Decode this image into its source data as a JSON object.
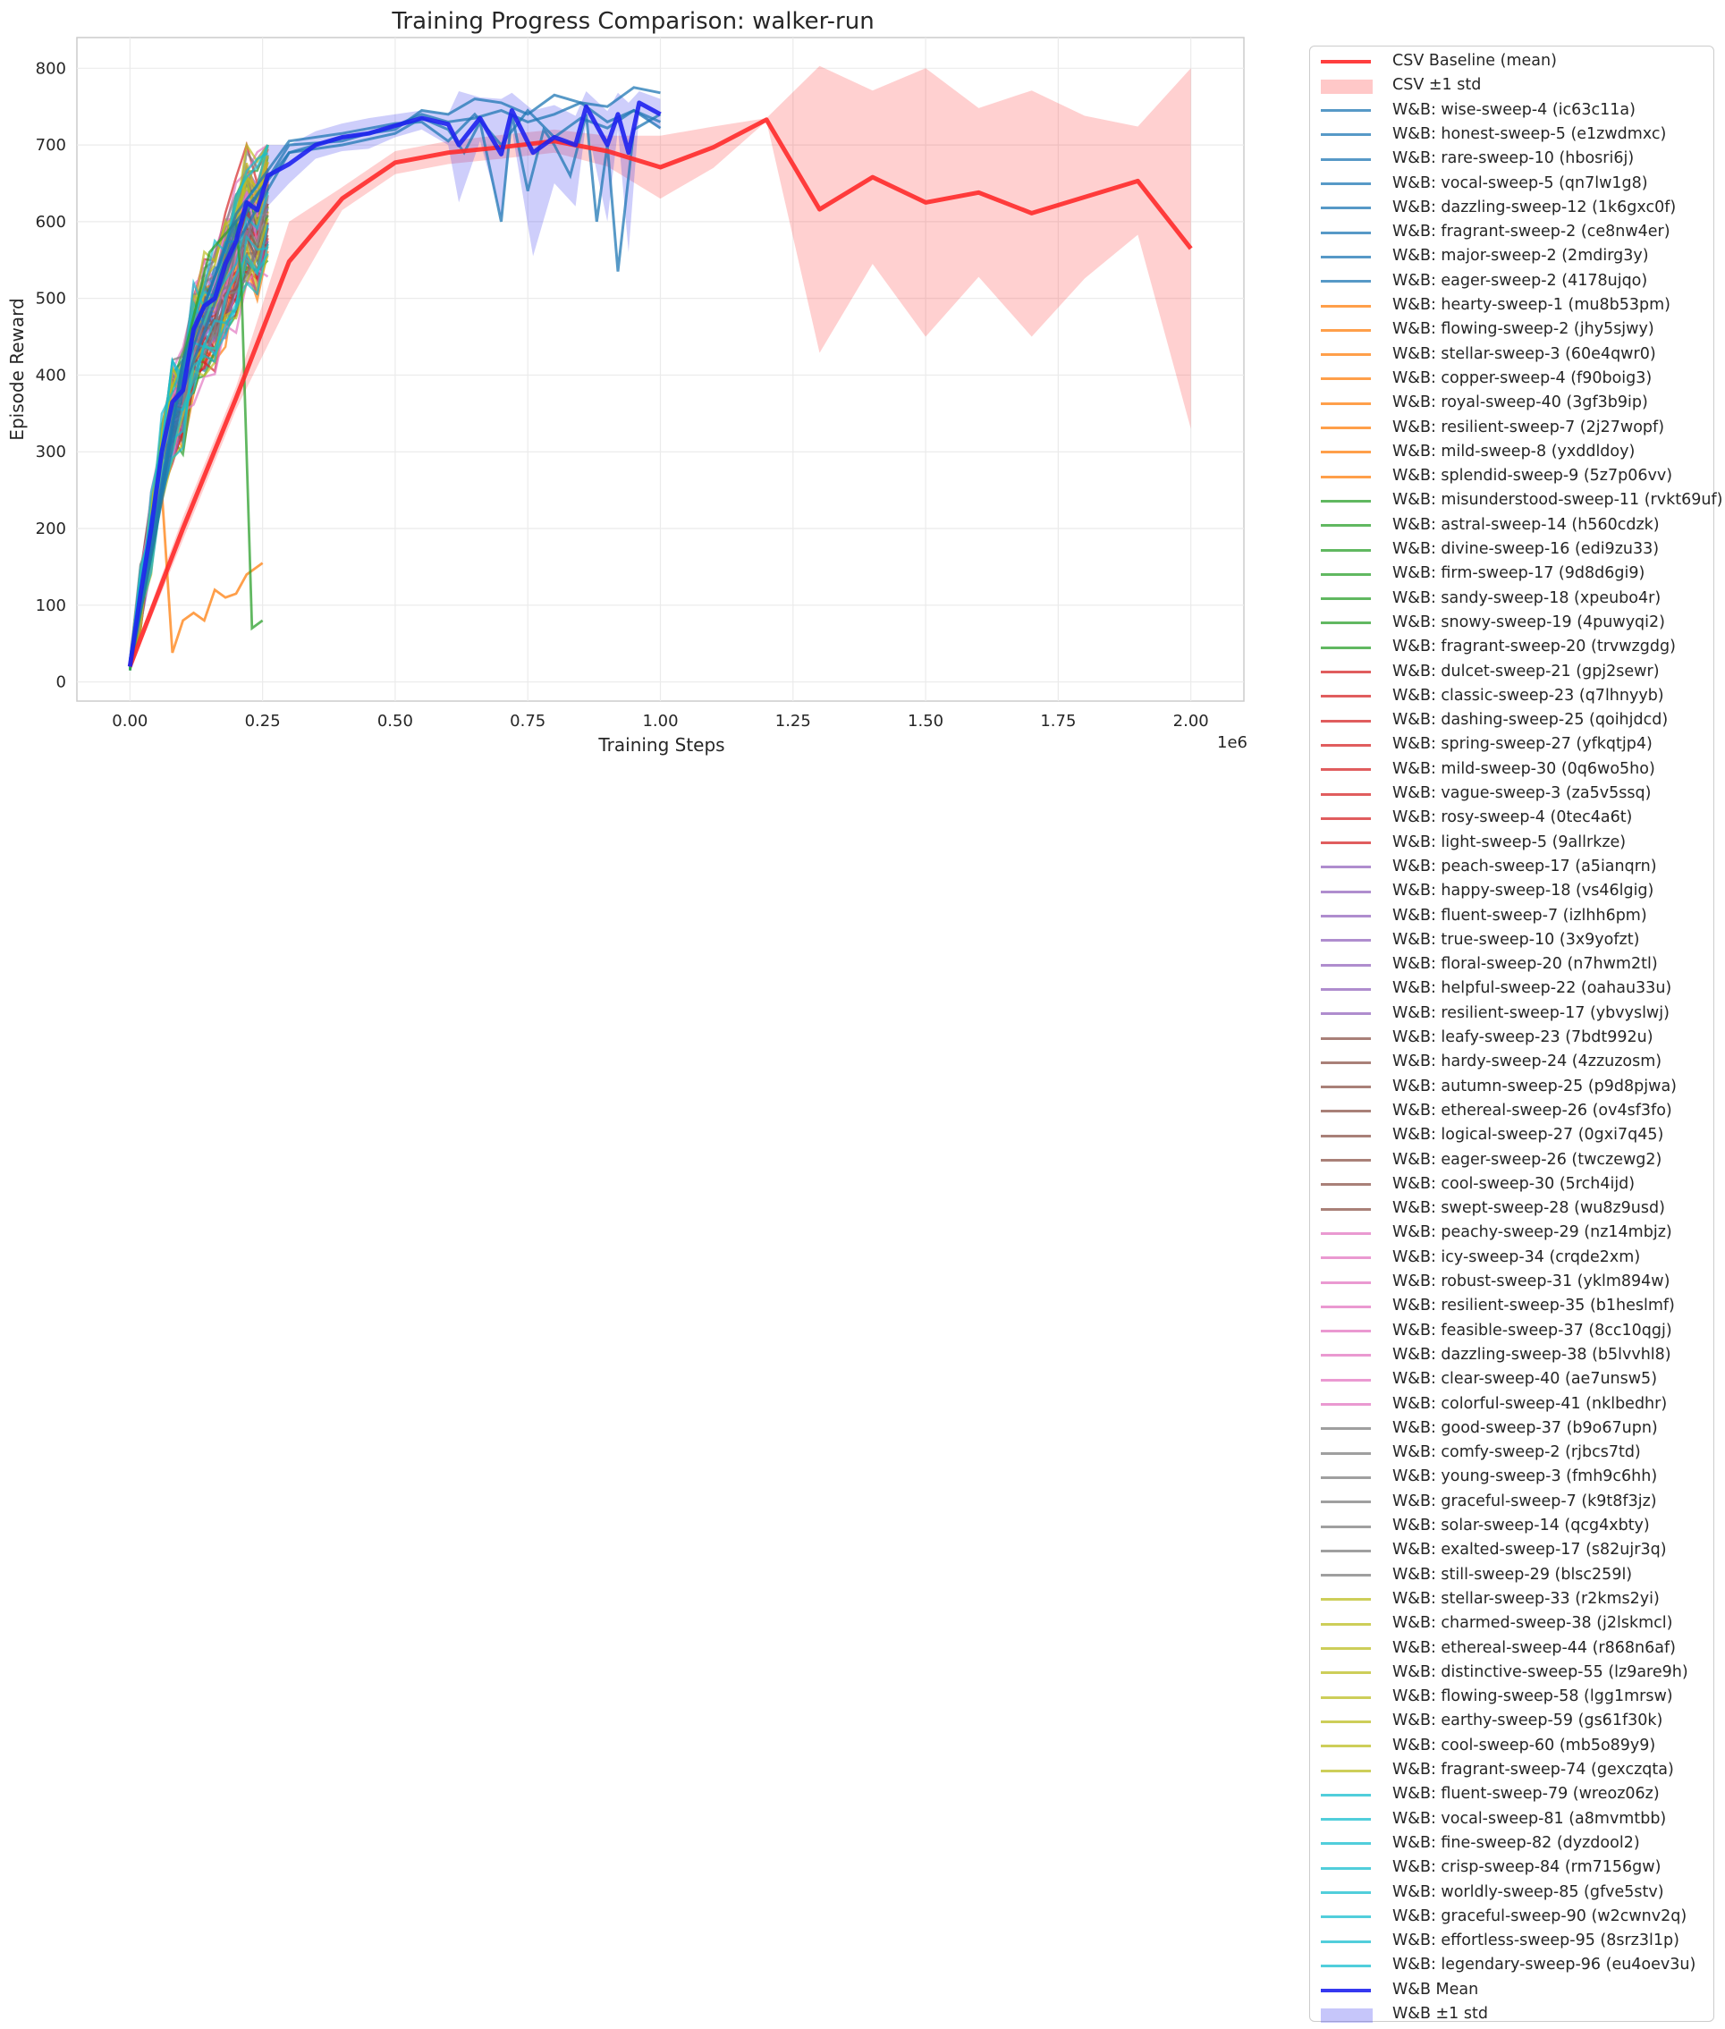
{
  "chart_data": {
    "type": "line",
    "title": "Training Progress Comparison: walker-run",
    "xlabel": "Training Steps",
    "ylabel": "Episode Reward",
    "x_offset_text": "1e6",
    "xlim": [
      -0.1,
      2.1
    ],
    "ylim": [
      -25,
      840
    ],
    "x_scale": 1000000,
    "x_ticks": [
      0.0,
      0.25,
      0.5,
      0.75,
      1.0,
      1.25,
      1.5,
      1.75,
      2.0
    ],
    "x_tick_labels": [
      "0.00",
      "0.25",
      "0.50",
      "0.75",
      "1.00",
      "1.25",
      "1.50",
      "1.75",
      "2.00"
    ],
    "y_ticks": [
      0,
      100,
      200,
      300,
      400,
      500,
      600,
      700,
      800
    ],
    "y_tick_labels": [
      "0",
      "100",
      "200",
      "300",
      "400",
      "500",
      "600",
      "700",
      "800"
    ],
    "grid": true,
    "legend_position": "outside-right",
    "baseline": {
      "name": "CSV Baseline (mean)",
      "band_name": "CSV ±1 std",
      "color": "#ff2a2a",
      "x": [
        0.0,
        0.1,
        0.2,
        0.3,
        0.4,
        0.5,
        0.6,
        0.7,
        0.8,
        0.9,
        1.0,
        1.1,
        1.2,
        1.3,
        1.4,
        1.5,
        1.6,
        1.7,
        1.8,
        1.9,
        2.0
      ],
      "mean": [
        20,
        200,
        370,
        548,
        630,
        677,
        690,
        697,
        705,
        692,
        671,
        697,
        733,
        616,
        658,
        625,
        638,
        611,
        632,
        653,
        565
      ],
      "upper": [
        25,
        215,
        385,
        600,
        645,
        692,
        705,
        713,
        720,
        712,
        712,
        724,
        735,
        803,
        771,
        800,
        748,
        771,
        738,
        724,
        800
      ],
      "lower": [
        15,
        185,
        355,
        495,
        615,
        662,
        675,
        682,
        690,
        672,
        630,
        670,
        731,
        429,
        545,
        450,
        528,
        450,
        526,
        583,
        330
      ]
    },
    "wandb_mean": {
      "name": "W&B Mean",
      "band_name": "W&B ±1 std",
      "color": "#1f22ee",
      "x": [
        0.0,
        0.02,
        0.04,
        0.06,
        0.08,
        0.1,
        0.12,
        0.14,
        0.16,
        0.18,
        0.2,
        0.22,
        0.24,
        0.26,
        0.3,
        0.35,
        0.4,
        0.45,
        0.5,
        0.55,
        0.6,
        0.62,
        0.66,
        0.7,
        0.72,
        0.76,
        0.8,
        0.84,
        0.86,
        0.9,
        0.92,
        0.94,
        0.96,
        1.0
      ],
      "mean": [
        20,
        115,
        200,
        300,
        365,
        380,
        460,
        490,
        500,
        545,
        575,
        625,
        615,
        660,
        675,
        700,
        710,
        715,
        725,
        735,
        727,
        700,
        735,
        688,
        745,
        690,
        710,
        700,
        750,
        700,
        740,
        690,
        755,
        740
      ],
      "upper": [
        25,
        155,
        240,
        340,
        405,
        420,
        500,
        530,
        540,
        580,
        610,
        665,
        650,
        700,
        700,
        718,
        728,
        735,
        740,
        745,
        740,
        770,
        762,
        760,
        768,
        745,
        752,
        738,
        770,
        744,
        768,
        755,
        770,
        760
      ],
      "lower": [
        15,
        75,
        160,
        260,
        325,
        340,
        420,
        450,
        460,
        510,
        540,
        585,
        580,
        620,
        650,
        682,
        692,
        695,
        710,
        720,
        700,
        625,
        705,
        605,
        720,
        555,
        650,
        620,
        730,
        600,
        720,
        560,
        740,
        720
      ]
    },
    "run_groups": [
      {
        "color": "#1f77b4",
        "runs": [
          "W&B: wise-sweep-4 (ic63c11a)",
          "W&B: honest-sweep-5 (e1zwdmxc)",
          "W&B: rare-sweep-10 (hbosri6j)",
          "W&B: vocal-sweep-5 (qn7lw1g8)",
          "W&B: dazzling-sweep-12 (1k6gxc0f)",
          "W&B: fragrant-sweep-2 (ce8nw4er)",
          "W&B: major-sweep-2 (2mdirg3y)",
          "W&B: eager-sweep-2 (4178ujqo)"
        ]
      },
      {
        "color": "#ff7f0e",
        "runs": [
          "W&B: hearty-sweep-1 (mu8b53pm)",
          "W&B: flowing-sweep-2 (jhy5sjwy)",
          "W&B: stellar-sweep-3 (60e4qwr0)",
          "W&B: copper-sweep-4 (f90boig3)",
          "W&B: royal-sweep-40 (3gf3b9ip)",
          "W&B: resilient-sweep-7 (2j27wopf)",
          "W&B: mild-sweep-8 (yxddldoy)",
          "W&B: splendid-sweep-9 (5z7p06vv)"
        ]
      },
      {
        "color": "#2ca02c",
        "runs": [
          "W&B: misunderstood-sweep-11 (rvkt69uf)",
          "W&B: astral-sweep-14 (h560cdzk)",
          "W&B: divine-sweep-16 (edi9zu33)",
          "W&B: firm-sweep-17 (9d8d6gi9)",
          "W&B: sandy-sweep-18 (xpeubo4r)",
          "W&B: snowy-sweep-19 (4puwyqi2)",
          "W&B: fragrant-sweep-20 (trvwzgdg)"
        ]
      },
      {
        "color": "#d62728",
        "runs": [
          "W&B: dulcet-sweep-21 (gpj2sewr)",
          "W&B: classic-sweep-23 (q7lhnyyb)",
          "W&B: dashing-sweep-25 (qoihjdcd)",
          "W&B: spring-sweep-27 (yfkqtjp4)",
          "W&B: mild-sweep-30 (0q6wo5ho)",
          "W&B: vague-sweep-3 (za5v5ssq)",
          "W&B: rosy-sweep-4 (0tec4a6t)",
          "W&B: light-sweep-5 (9allrkze)"
        ]
      },
      {
        "color": "#9467bd",
        "runs": [
          "W&B: peach-sweep-17 (a5ianqrn)",
          "W&B: happy-sweep-18 (vs46lgig)",
          "W&B: fluent-sweep-7 (izlhh6pm)",
          "W&B: true-sweep-10 (3x9yofzt)",
          "W&B: floral-sweep-20 (n7hwm2tl)",
          "W&B: helpful-sweep-22 (oahau33u)",
          "W&B: resilient-sweep-17 (ybvyslwj)"
        ]
      },
      {
        "color": "#8c564b",
        "runs": [
          "W&B: leafy-sweep-23 (7bdt992u)",
          "W&B: hardy-sweep-24 (4zzuzosm)",
          "W&B: autumn-sweep-25 (p9d8pjwa)",
          "W&B: ethereal-sweep-26 (ov4sf3fo)",
          "W&B: logical-sweep-27 (0gxi7q45)",
          "W&B: eager-sweep-26 (twczewg2)",
          "W&B: cool-sweep-30 (5rch4ijd)",
          "W&B: swept-sweep-28 (wu8z9usd)"
        ]
      },
      {
        "color": "#e377c2",
        "runs": [
          "W&B: peachy-sweep-29 (nz14mbjz)",
          "W&B: icy-sweep-34 (crqde2xm)",
          "W&B: robust-sweep-31 (yklm894w)",
          "W&B: resilient-sweep-35 (b1heslmf)",
          "W&B: feasible-sweep-37 (8cc10qgj)",
          "W&B: dazzling-sweep-38 (b5lvvhl8)",
          "W&B: clear-sweep-40 (ae7unsw5)",
          "W&B: colorful-sweep-41 (nklbedhr)"
        ]
      },
      {
        "color": "#7f7f7f",
        "runs": [
          "W&B: good-sweep-37 (b9o67upn)",
          "W&B: comfy-sweep-2 (rjbcs7td)",
          "W&B: young-sweep-3 (fmh9c6hh)",
          "W&B: graceful-sweep-7 (k9t8f3jz)",
          "W&B: solar-sweep-14 (qcg4xbty)",
          "W&B: exalted-sweep-17 (s82ujr3q)",
          "W&B: still-sweep-29 (blsc259l)"
        ]
      },
      {
        "color": "#bcbd22",
        "runs": [
          "W&B: stellar-sweep-33 (r2kms2yi)",
          "W&B: charmed-sweep-38 (j2lskmcl)",
          "W&B: ethereal-sweep-44 (r868n6af)",
          "W&B: distinctive-sweep-55 (lz9are9h)",
          "W&B: flowing-sweep-58 (lgg1mrsw)",
          "W&B: earthy-sweep-59 (gs61f30k)",
          "W&B: cool-sweep-60 (mb5o89y9)",
          "W&B: fragrant-sweep-74 (gexczqta)"
        ]
      },
      {
        "color": "#17becf",
        "runs": [
          "W&B: fluent-sweep-79 (wreoz06z)",
          "W&B: vocal-sweep-81 (a8mvmtbb)",
          "W&B: fine-sweep-82 (dyzdool2)",
          "W&B: crisp-sweep-84 (rm7156gw)",
          "W&B: worldly-sweep-85 (gfve5stv)",
          "W&B: graceful-sweep-90 (w2cwnv2q)",
          "W&B: effortless-sweep-95 (8srz3l1p)",
          "W&B: legendary-sweep-96 (eu4oev3u)"
        ]
      }
    ],
    "blue_long_runs": [
      {
        "x": [
          0.0,
          0.1,
          0.2,
          0.3,
          0.4,
          0.5,
          0.55,
          0.6,
          0.65,
          0.7,
          0.75,
          0.8,
          0.85,
          0.9,
          0.95,
          1.0
        ],
        "y": [
          20,
          420,
          600,
          690,
          710,
          720,
          745,
          740,
          760,
          755,
          740,
          765,
          755,
          750,
          775,
          768
        ]
      },
      {
        "x": [
          0.0,
          0.1,
          0.2,
          0.3,
          0.4,
          0.5,
          0.55,
          0.6,
          0.65,
          0.7,
          0.75,
          0.8,
          0.85,
          0.9,
          0.95,
          1.0
        ],
        "y": [
          20,
          400,
          590,
          700,
          705,
          725,
          740,
          730,
          735,
          745,
          730,
          740,
          755,
          730,
          745,
          722
        ]
      },
      {
        "x": [
          0.0,
          0.1,
          0.2,
          0.3,
          0.4,
          0.5,
          0.55,
          0.6,
          0.63,
          0.66,
          0.7,
          0.72,
          0.75,
          0.78,
          0.8,
          0.83,
          0.86,
          0.88,
          0.9,
          0.92,
          0.95,
          1.0
        ],
        "y": [
          20,
          380,
          570,
          690,
          700,
          715,
          735,
          720,
          690,
          730,
          600,
          740,
          640,
          720,
          700,
          660,
          740,
          600,
          700,
          535,
          720,
          740
        ]
      },
      {
        "x": [
          0.0,
          0.1,
          0.2,
          0.3,
          0.4,
          0.5,
          0.55,
          0.6,
          0.65,
          0.7,
          0.75,
          0.8,
          0.85,
          0.9,
          0.95,
          1.0
        ],
        "y": [
          20,
          410,
          610,
          705,
          715,
          728,
          730,
          705,
          740,
          700,
          745,
          710,
          735,
          722,
          745,
          730
        ]
      }
    ],
    "short_run_annotations": [
      {
        "color": "#ff7f0e",
        "x": [
          0.06,
          0.08,
          0.1,
          0.12,
          0.14,
          0.16,
          0.18,
          0.2,
          0.22,
          0.25
        ],
        "y": [
          250,
          38,
          80,
          90,
          80,
          120,
          110,
          115,
          140,
          155
        ]
      },
      {
        "color": "#2ca02c",
        "x": [
          0.0,
          0.05,
          0.1,
          0.15,
          0.2,
          0.21,
          0.23,
          0.25
        ],
        "y": [
          15,
          200,
          420,
          560,
          600,
          520,
          70,
          80
        ]
      }
    ]
  }
}
